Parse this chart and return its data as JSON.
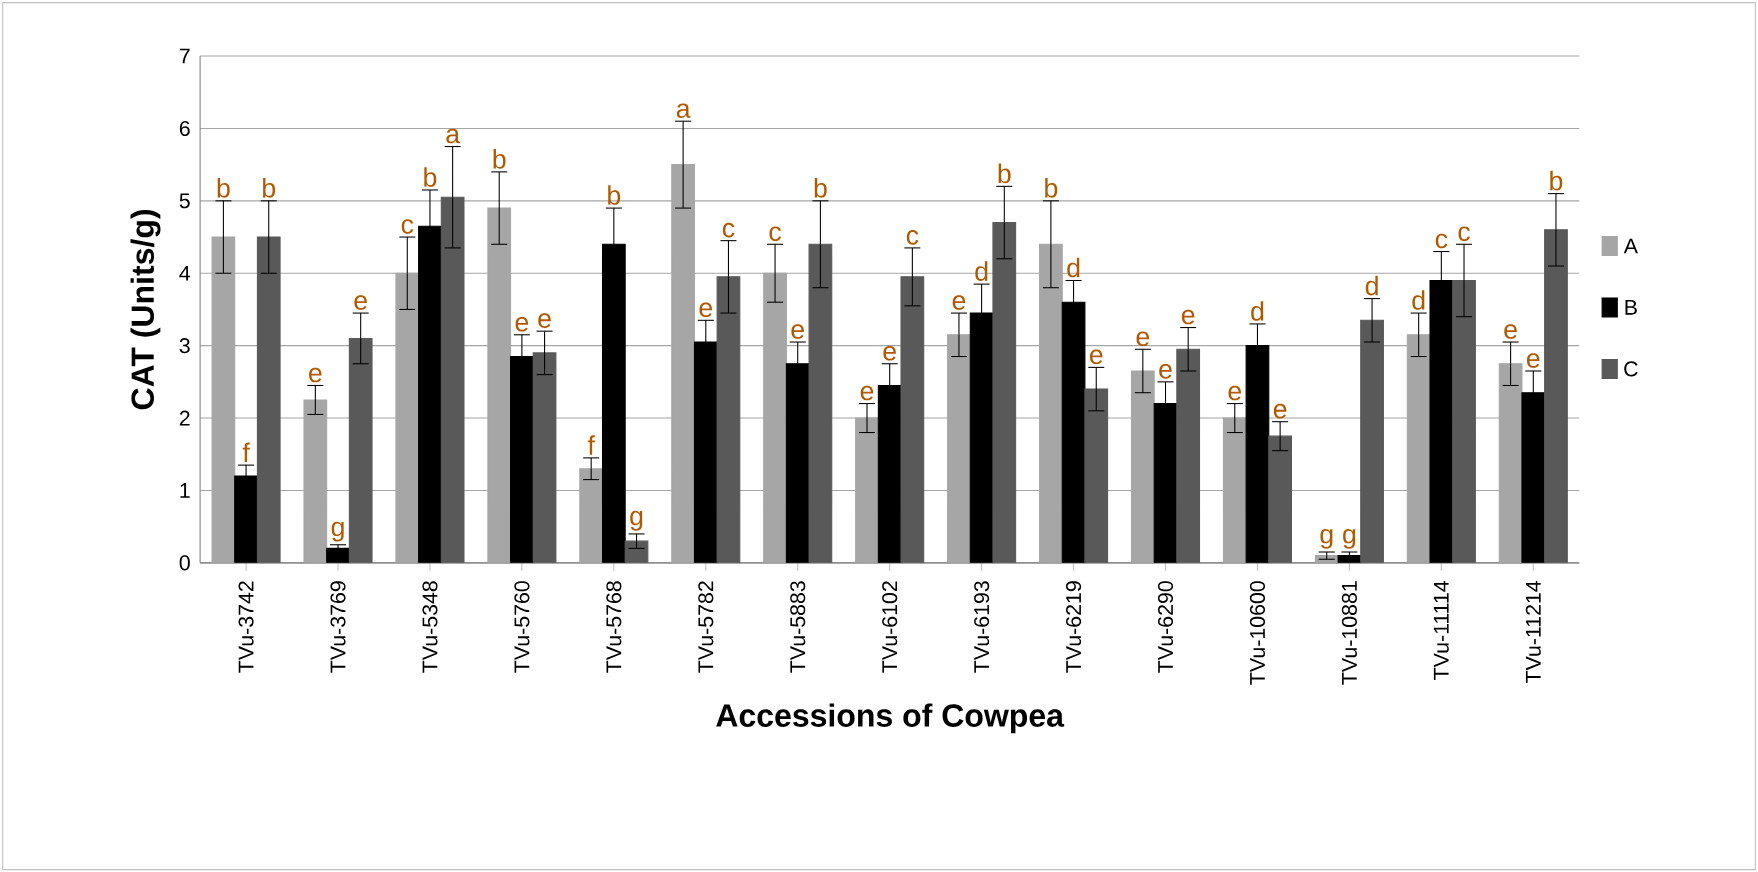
{
  "chart_data": {
    "type": "bar",
    "xlabel": "Accessions of Cowpea",
    "ylabel": "CAT (Units/g)",
    "categories": [
      "TVu-3742",
      "TVu-3769",
      "TVu-5348",
      "TVu-5760",
      "TVu-5768",
      "TVu-5782",
      "TVu-5883",
      "TVu-6102",
      "TVu-6193",
      "TVu-6219",
      "TVu-6290",
      "TVu-10600",
      "TVu-10881",
      "TVu-11114",
      "TVu-11214"
    ],
    "series": [
      {
        "name": "A",
        "color": "#a6a6a6",
        "values": [
          4.5,
          2.25,
          4.0,
          4.9,
          1.3,
          5.5,
          4.0,
          2.0,
          3.15,
          4.4,
          2.65,
          2.0,
          0.1,
          3.15,
          2.75
        ],
        "errors": [
          0.5,
          0.2,
          0.5,
          0.5,
          0.15,
          0.6,
          0.4,
          0.2,
          0.3,
          0.6,
          0.3,
          0.2,
          0.05,
          0.3,
          0.3
        ]
      },
      {
        "name": "B",
        "color": "#000000",
        "values": [
          1.2,
          0.2,
          4.65,
          2.85,
          4.4,
          3.05,
          2.75,
          2.45,
          3.45,
          3.6,
          2.2,
          3.0,
          0.1,
          3.9,
          2.35
        ],
        "errors": [
          0.15,
          0.05,
          0.5,
          0.3,
          0.5,
          0.3,
          0.3,
          0.3,
          0.4,
          0.3,
          0.3,
          0.3,
          0.05,
          0.4,
          0.3
        ]
      },
      {
        "name": "C",
        "color": "#595959",
        "values": [
          4.5,
          3.1,
          5.05,
          2.9,
          0.3,
          3.95,
          4.4,
          3.95,
          4.7,
          2.4,
          2.95,
          1.75,
          3.35,
          3.9,
          4.6
        ],
        "errors": [
          0.5,
          0.35,
          0.7,
          0.3,
          0.1,
          0.5,
          0.6,
          0.4,
          0.5,
          0.3,
          0.3,
          0.2,
          0.3,
          0.5,
          0.5
        ]
      }
    ],
    "ylim": [
      0,
      7
    ],
    "yticks": [
      0,
      1,
      2,
      3,
      4,
      5,
      6,
      7
    ],
    "grid": "y",
    "legend": "right",
    "annotations": [
      "b",
      "f",
      "b",
      "e",
      "g",
      "e",
      "c",
      "b",
      "a",
      "b",
      "e",
      "e",
      "f",
      "b",
      "g",
      "a",
      "e",
      "c",
      "c",
      "e",
      "b",
      "e",
      "e",
      "c",
      "e",
      "d",
      "b",
      "b",
      "d",
      "e",
      "e",
      "e",
      "e",
      "e",
      "d",
      "e",
      "g",
      "g",
      "d",
      "d",
      "c",
      "c",
      "e",
      "e",
      "b"
    ]
  }
}
